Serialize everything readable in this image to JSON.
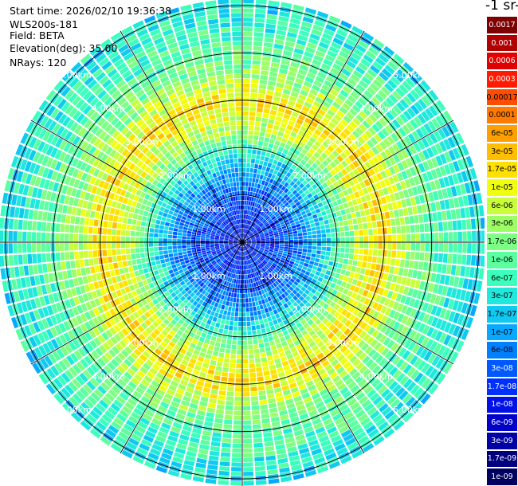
{
  "info": {
    "start_time": "Start time: 2026/02/10 19:36:38",
    "instrument": "WLS200s-181",
    "field": "Field: BETA",
    "elevation": "Elevation(deg): 35.00",
    "nrays": "NRays: 120"
  },
  "colorbar": {
    "title": "-1 sr-",
    "labels": [
      "0.0017",
      "0.001",
      "0.0006",
      "0.0003",
      "0.00017",
      "0.0001",
      "6e-05",
      "3e-05",
      "1.7e-05",
      "1e-05",
      "6e-06",
      "3e-06",
      "1.7e-06",
      "1e-06",
      "6e-07",
      "3e-07",
      "1.7e-07",
      "1e-07",
      "6e-08",
      "3e-08",
      "1.7e-08",
      "1e-08",
      "6e-09",
      "3e-09",
      "1.7e-09",
      "1e-09"
    ],
    "colors": [
      "#7f0000",
      "#b00000",
      "#e00000",
      "#ff1a00",
      "#ff4d00",
      "#ff7a00",
      "#ffa000",
      "#ffbf00",
      "#ffe000",
      "#f0ff10",
      "#c8ff3a",
      "#9cff66",
      "#7cff84",
      "#5cffa0",
      "#3cffbd",
      "#20e8dc",
      "#10c8f0",
      "#08a8ff",
      "#0080ff",
      "#0058ff",
      "#0030ff",
      "#0010e6",
      "#0000c8",
      "#0000a4",
      "#00007f",
      "#000060"
    ]
  },
  "chart_data": {
    "type": "heatmap",
    "subtype": "polar PPI scan",
    "nrays": 120,
    "elevation_deg": 35.0,
    "field": "BETA",
    "range_rings_km": [
      1,
      2,
      3,
      4,
      5
    ],
    "ring_labels": [
      "1.00km",
      "2.00km",
      "3.00km",
      "4.00km",
      "5.00km"
    ],
    "max_range_km": 5.15,
    "radial_profile": {
      "range_km": [
        0.0,
        0.5,
        1.0,
        1.5,
        2.0,
        2.5,
        3.0,
        3.5,
        4.0,
        4.5,
        5.0
      ],
      "beta_sr": [
        1e-08,
        1.7e-08,
        3e-08,
        1e-07,
        6e-07,
        6e-06,
        1.7e-05,
        3e-06,
        1e-06,
        6e-07,
        3e-07
      ]
    },
    "color_scale": "log",
    "color_range": [
      1e-09,
      0.0017
    ]
  }
}
